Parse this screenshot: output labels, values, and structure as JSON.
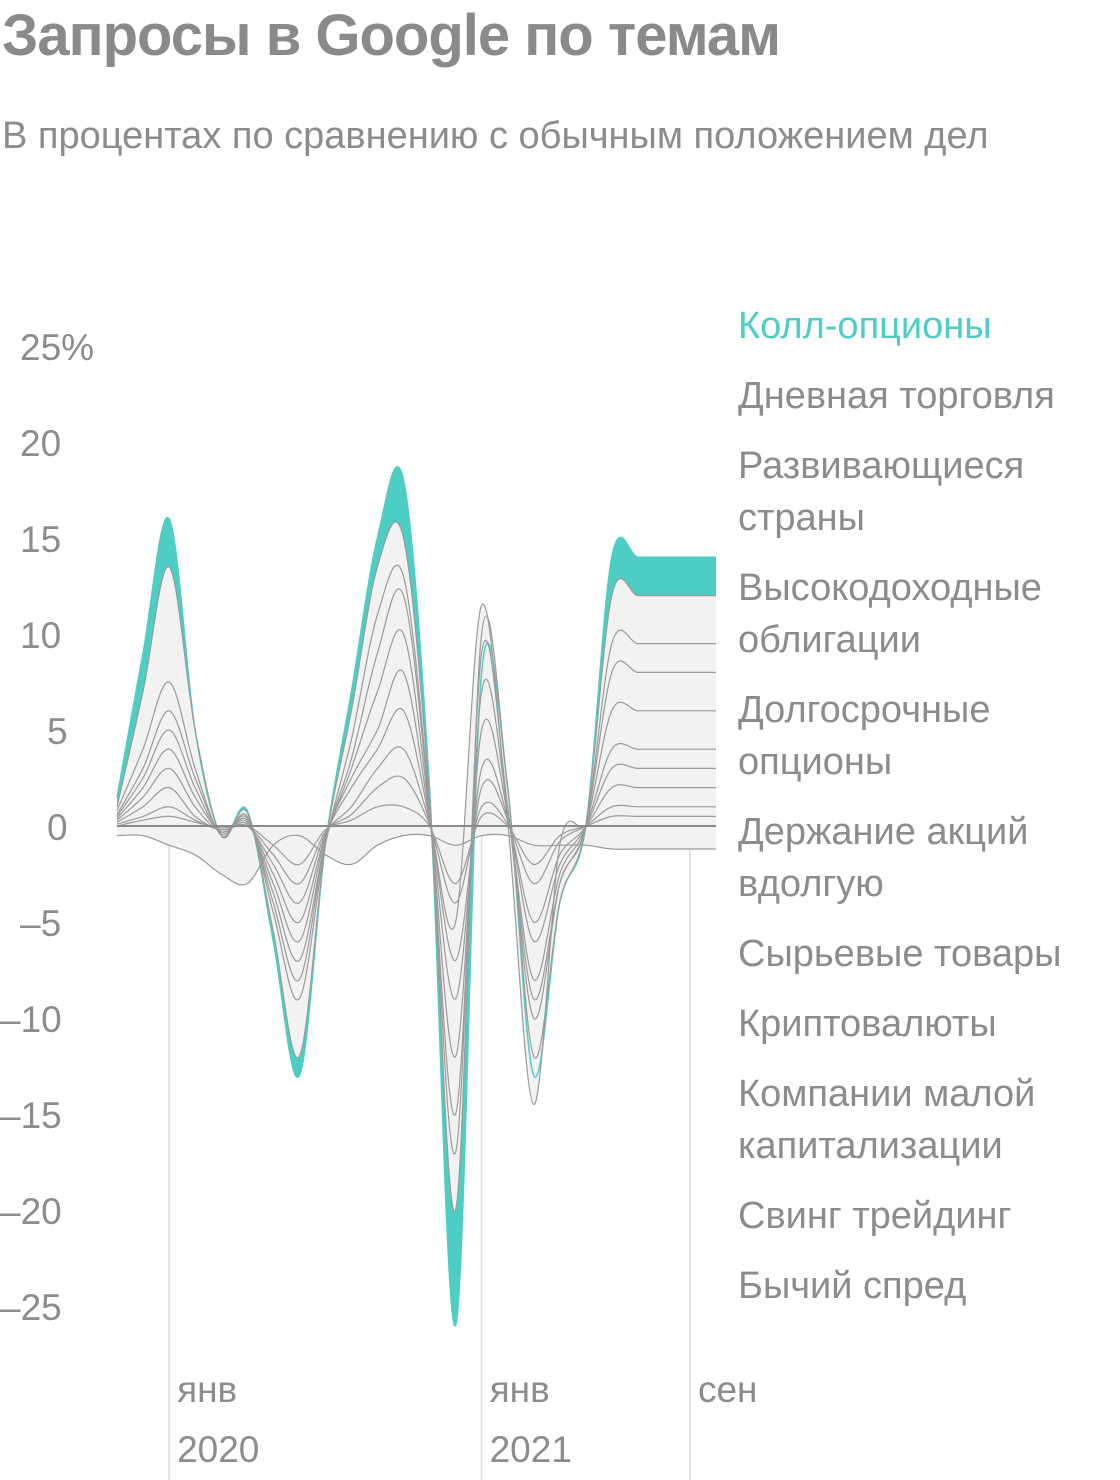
{
  "title": "Запросы в Google по темам",
  "subtitle": "В процентах по сравнению с обычным положением дел",
  "chart_data": {
    "type": "area",
    "title": "Запросы в Google по темам",
    "subtitle": "В процентах по сравнению с обычным положением дел",
    "unit": "%",
    "ylim": [
      -27,
      27
    ],
    "y_ticks": [
      25,
      20,
      15,
      10,
      5,
      0,
      -5,
      -10,
      -15,
      -20,
      -25
    ],
    "y_tick_labels": [
      "25%",
      "20",
      "15",
      "10",
      "5",
      "0",
      "–5",
      "–10",
      "–15",
      "–20",
      "–25"
    ],
    "x_ticks": [
      {
        "month": "янв",
        "year": "2020",
        "x": "2020-01"
      },
      {
        "month": "янв",
        "year": "2021",
        "x": "2021-01"
      },
      {
        "month": "сен",
        "year": "",
        "x": "2021-09"
      }
    ],
    "x": [
      "2019-11",
      "2019-12",
      "2020-01",
      "2020-02",
      "2020-03",
      "2020-04",
      "2020-05",
      "2020-06",
      "2020-07",
      "2020-08",
      "2020-09",
      "2020-10",
      "2020-11",
      "2020-12",
      "2021-01",
      "2021-02",
      "2021-03",
      "2021-04",
      "2021-05",
      "2021-06",
      "2021-07",
      "2021-08",
      "2021-09",
      "2021-10"
    ],
    "legend": [
      "Колл-опционы",
      "Дневная торговля",
      "Развивающиеся страны",
      "Высокодоходные облигации",
      "Долгосрочные опционы",
      "Держание акций вдолгую",
      "Сырьевые товары",
      "Криптовалюты",
      "Компании малой капитализации",
      "Свинг трейдинг",
      "Бычий спред"
    ],
    "highlight_color": "#4ecdc4",
    "other_color": "#f2f2f2",
    "series": [
      {
        "name": "Колл-опционы",
        "values": [
          1.5,
          9,
          16,
          5,
          -0.5,
          0.8,
          -6,
          -13,
          -1,
          7,
          15,
          18,
          2,
          -26,
          8,
          2,
          -13,
          -4,
          0,
          14,
          14,
          14,
          14,
          14
        ]
      },
      {
        "name": "Дневная торговля",
        "values": [
          1,
          7,
          13.5,
          5,
          -0.5,
          0.7,
          -5.5,
          -12,
          -1,
          6,
          13.5,
          15,
          1.5,
          -20,
          10,
          2,
          -12,
          -4,
          0,
          12,
          12,
          12,
          12,
          12
        ]
      },
      {
        "name": "Развивающиеся страны",
        "values": [
          0.8,
          4,
          7.5,
          3,
          -0.5,
          0.5,
          -4.5,
          -9,
          -1,
          4.5,
          11,
          13,
          1,
          -17,
          9,
          1,
          -10,
          -3,
          0,
          9.5,
          9.5,
          9.5,
          9.5,
          9.5
        ]
      },
      {
        "name": "Высокодоходные облигации",
        "values": [
          0.6,
          3,
          6,
          2.5,
          -0.4,
          0.4,
          -4,
          -8,
          -0.8,
          3.5,
          9,
          12,
          0.8,
          -15,
          7,
          0.8,
          -9,
          -3,
          0,
          8,
          8,
          8,
          8,
          8
        ]
      },
      {
        "name": "Долгосрочные опционы",
        "values": [
          0.5,
          2.5,
          5,
          2,
          -0.4,
          0.3,
          -3.5,
          -7,
          -0.8,
          3,
          7,
          10,
          0.6,
          -12,
          5,
          0.6,
          -8,
          -2.5,
          0,
          6,
          6,
          6,
          6,
          6
        ]
      },
      {
        "name": "Держание акций вдолгую",
        "values": [
          0.4,
          2,
          4,
          1.5,
          -0.3,
          0.2,
          -3,
          -6,
          -0.6,
          2.5,
          5,
          8,
          0.4,
          -9,
          3,
          0.4,
          -6,
          -2,
          0,
          4,
          4,
          4,
          4,
          4
        ]
      },
      {
        "name": "Сырьевые товары",
        "values": [
          0.3,
          1.5,
          3,
          1,
          -0.3,
          0.1,
          -2.5,
          -5,
          -0.5,
          2,
          4,
          6,
          0.3,
          -7,
          2,
          0.3,
          -5,
          -1.5,
          0,
          3,
          3,
          3,
          3,
          3
        ]
      },
      {
        "name": "Криптовалюты",
        "values": [
          0.2,
          1,
          2,
          0.5,
          -0.2,
          0,
          -2,
          -4,
          -0.4,
          1,
          3,
          4,
          0.2,
          -5,
          11.5,
          0.2,
          -14.5,
          -1,
          0,
          2,
          2,
          2,
          2,
          2
        ]
      },
      {
        "name": "Компании малой капитализации",
        "values": [
          0.1,
          0.5,
          1,
          0.3,
          -0.2,
          0,
          -1.5,
          -3,
          -0.3,
          0.6,
          2,
          2.5,
          0.1,
          -4,
          1,
          0.1,
          -3,
          -0.8,
          0,
          1,
          1,
          1,
          1,
          1
        ]
      },
      {
        "name": "Свинг трейдинг",
        "values": [
          0,
          0.3,
          0.5,
          0.2,
          -0.1,
          0,
          -1,
          -2,
          -0.2,
          0.3,
          1,
          1,
          0,
          -3,
          0.5,
          0,
          -2,
          -0.5,
          0,
          0.5,
          0.5,
          0.5,
          0.5,
          0.5
        ]
      },
      {
        "name": "Бычий спред",
        "values": [
          -0.5,
          -0.5,
          -1,
          -1.5,
          -2.5,
          -3,
          -1,
          -0.5,
          -1.5,
          -2,
          -1,
          -0.5,
          -0.5,
          -1,
          -0.5,
          -0.5,
          -1,
          -1,
          -1,
          -1.2,
          -1.2,
          -1.2,
          -1.2,
          -1.2
        ]
      }
    ]
  }
}
